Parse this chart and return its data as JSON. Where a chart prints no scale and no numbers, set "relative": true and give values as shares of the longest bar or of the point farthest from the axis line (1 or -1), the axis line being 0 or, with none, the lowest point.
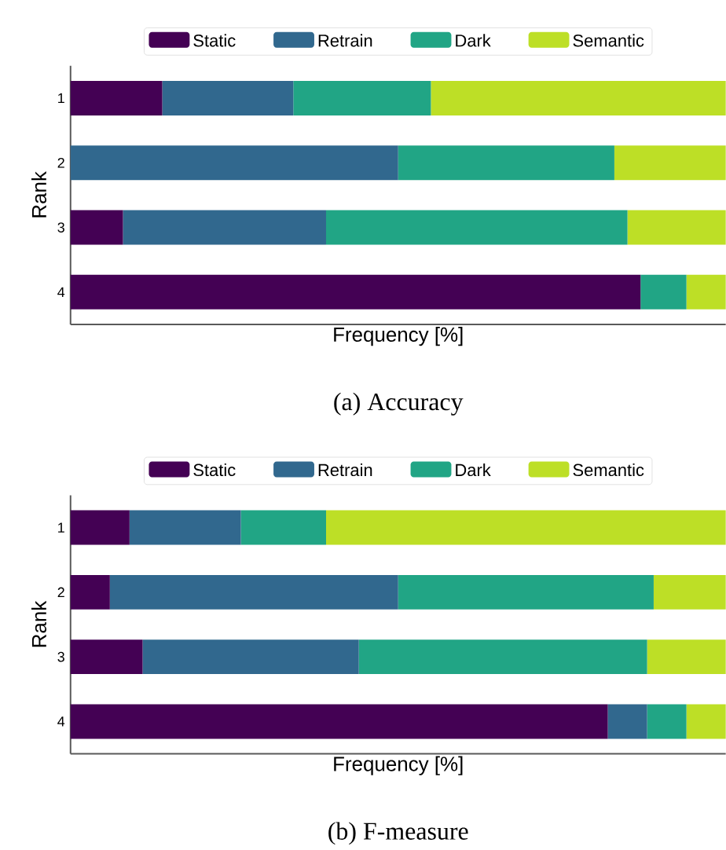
{
  "chart_data": [
    {
      "type": "bar",
      "orientation": "horizontal",
      "stacked": true,
      "relative": true,
      "categories": [
        "1",
        "2",
        "3",
        "4"
      ],
      "ylabel": "Rank",
      "xlabel": "Frequency [%]",
      "legend": "top",
      "annotations": [
        "(a) Accuracy"
      ],
      "series": [
        {
          "name": "Static",
          "color": "#440154",
          "values": [
            0.14,
            0,
            0.08,
            0.87
          ]
        },
        {
          "name": "Retrain",
          "color": "#31688e",
          "values": [
            0.2,
            0.5,
            0.31,
            0
          ]
        },
        {
          "name": "Dark",
          "color": "#21a585",
          "values": [
            0.21,
            0.33,
            0.46,
            0.07
          ]
        },
        {
          "name": "Semantic",
          "color": "#bddf26",
          "values": [
            0.45,
            0.17,
            0.15,
            0.06
          ]
        }
      ]
    },
    {
      "type": "bar",
      "orientation": "horizontal",
      "stacked": true,
      "relative": true,
      "categories": [
        "1",
        "2",
        "3",
        "4"
      ],
      "ylabel": "Rank",
      "xlabel": "Frequency [%]",
      "legend": "top",
      "annotations": [
        "(b) F-measure"
      ],
      "series": [
        {
          "name": "Static",
          "color": "#440154",
          "values": [
            0.09,
            0.06,
            0.11,
            0.82
          ]
        },
        {
          "name": "Retrain",
          "color": "#31688e",
          "values": [
            0.17,
            0.44,
            0.33,
            0.06
          ]
        },
        {
          "name": "Dark",
          "color": "#21a585",
          "values": [
            0.13,
            0.39,
            0.44,
            0.06
          ]
        },
        {
          "name": "Semantic",
          "color": "#bddf26",
          "values": [
            0.61,
            0.11,
            0.12,
            0.06
          ]
        }
      ]
    }
  ]
}
